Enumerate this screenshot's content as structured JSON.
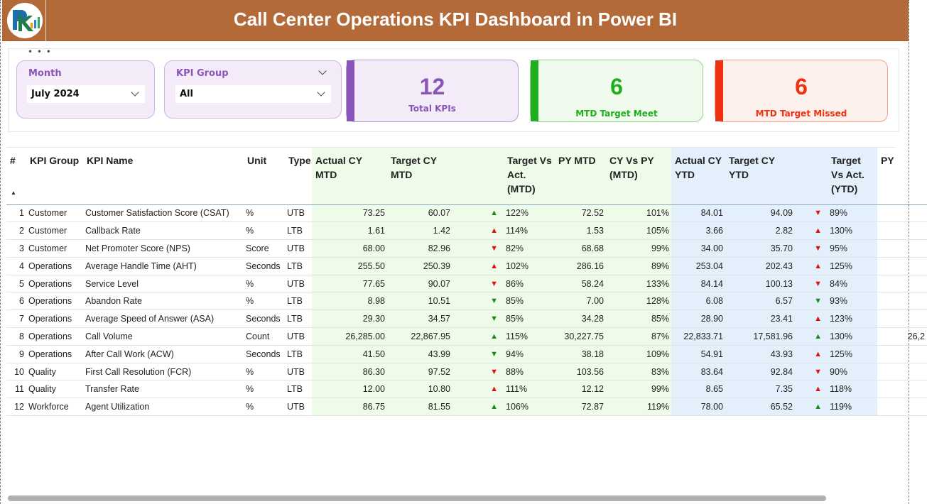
{
  "header": {
    "title": "Call Center Operations KPI Dashboard in Power BI",
    "logo_text": "PK"
  },
  "filters": {
    "month": {
      "label": "Month",
      "value": "July 2024"
    },
    "kpi_group": {
      "label": "KPI Group",
      "value": "All"
    }
  },
  "cards": [
    {
      "value": "12",
      "label": "Total KPIs",
      "color": "#8a55b8"
    },
    {
      "value": "6",
      "label": "MTD Target Meet",
      "color": "#1fae1f"
    },
    {
      "value": "6",
      "label": "MTD Target Missed",
      "color": "#f03010"
    }
  ],
  "table": {
    "columns": [
      "#",
      "KPI Group",
      "KPI Name",
      "Unit",
      "Type",
      "Actual CY MTD",
      "Target CY MTD",
      "",
      "Target Vs Act. (MTD)",
      "PY MTD",
      "CY Vs PY (MTD)",
      "Actual CY YTD",
      "Target CY YTD",
      "",
      "Target Vs Act. (YTD)",
      "PY"
    ],
    "rows": [
      [
        "1",
        "Customer",
        "Customer Satisfaction Score (CSAT)",
        "%",
        "UTB",
        "73.25",
        "60.07",
        "up-green",
        "122%",
        "72.52",
        "101%",
        "84.01",
        "94.09",
        "down-red",
        "89%",
        ""
      ],
      [
        "2",
        "Customer",
        "Callback Rate",
        "%",
        "LTB",
        "1.61",
        "1.42",
        "up-red",
        "114%",
        "1.53",
        "105%",
        "3.66",
        "2.82",
        "up-red",
        "130%",
        ""
      ],
      [
        "3",
        "Customer",
        "Net Promoter Score (NPS)",
        "Score",
        "UTB",
        "68.00",
        "82.96",
        "down-red",
        "82%",
        "68.68",
        "99%",
        "34.00",
        "35.70",
        "down-red",
        "95%",
        ""
      ],
      [
        "4",
        "Operations",
        "Average Handle Time (AHT)",
        "Seconds",
        "LTB",
        "255.50",
        "250.39",
        "up-red",
        "102%",
        "286.16",
        "89%",
        "253.04",
        "202.43",
        "up-red",
        "125%",
        ""
      ],
      [
        "5",
        "Operations",
        "Service Level",
        "%",
        "UTB",
        "77.65",
        "90.07",
        "down-red",
        "86%",
        "58.24",
        "133%",
        "84.14",
        "100.13",
        "down-red",
        "84%",
        ""
      ],
      [
        "6",
        "Operations",
        "Abandon Rate",
        "%",
        "LTB",
        "8.98",
        "10.51",
        "down-green",
        "85%",
        "7.00",
        "128%",
        "6.08",
        "6.57",
        "down-green",
        "93%",
        ""
      ],
      [
        "7",
        "Operations",
        "Average Speed of Answer (ASA)",
        "Seconds",
        "LTB",
        "29.30",
        "34.57",
        "down-green",
        "85%",
        "34.28",
        "85%",
        "28.90",
        "23.41",
        "up-red",
        "123%",
        ""
      ],
      [
        "8",
        "Operations",
        "Call Volume",
        "Count",
        "UTB",
        "26,285.00",
        "22,867.95",
        "up-green",
        "115%",
        "30,227.75",
        "87%",
        "22,833.71",
        "17,581.96",
        "up-green",
        "130%",
        "26,2"
      ],
      [
        "9",
        "Operations",
        "After Call Work (ACW)",
        "Seconds",
        "LTB",
        "41.50",
        "43.99",
        "down-green",
        "94%",
        "38.18",
        "109%",
        "54.91",
        "43.93",
        "up-red",
        "125%",
        ""
      ],
      [
        "10",
        "Quality",
        "First Call Resolution (FCR)",
        "%",
        "UTB",
        "86.30",
        "97.52",
        "down-red",
        "88%",
        "103.56",
        "83%",
        "83.64",
        "92.84",
        "down-red",
        "90%",
        ""
      ],
      [
        "11",
        "Quality",
        "Transfer Rate",
        "%",
        "LTB",
        "12.00",
        "10.80",
        "up-red",
        "111%",
        "12.12",
        "99%",
        "8.65",
        "7.35",
        "up-red",
        "118%",
        ""
      ],
      [
        "12",
        "Workforce",
        "Agent Utilization",
        "%",
        "UTB",
        "86.75",
        "81.55",
        "up-green",
        "106%",
        "72.87",
        "119%",
        "78.00",
        "65.52",
        "up-green",
        "119%",
        ""
      ]
    ]
  },
  "colors": {
    "header_bg": "#b46a38",
    "mtd_bg": "#eefbe8",
    "ytd_bg": "#e3effa",
    "green": "#1a8a1a",
    "red": "#e01010"
  }
}
